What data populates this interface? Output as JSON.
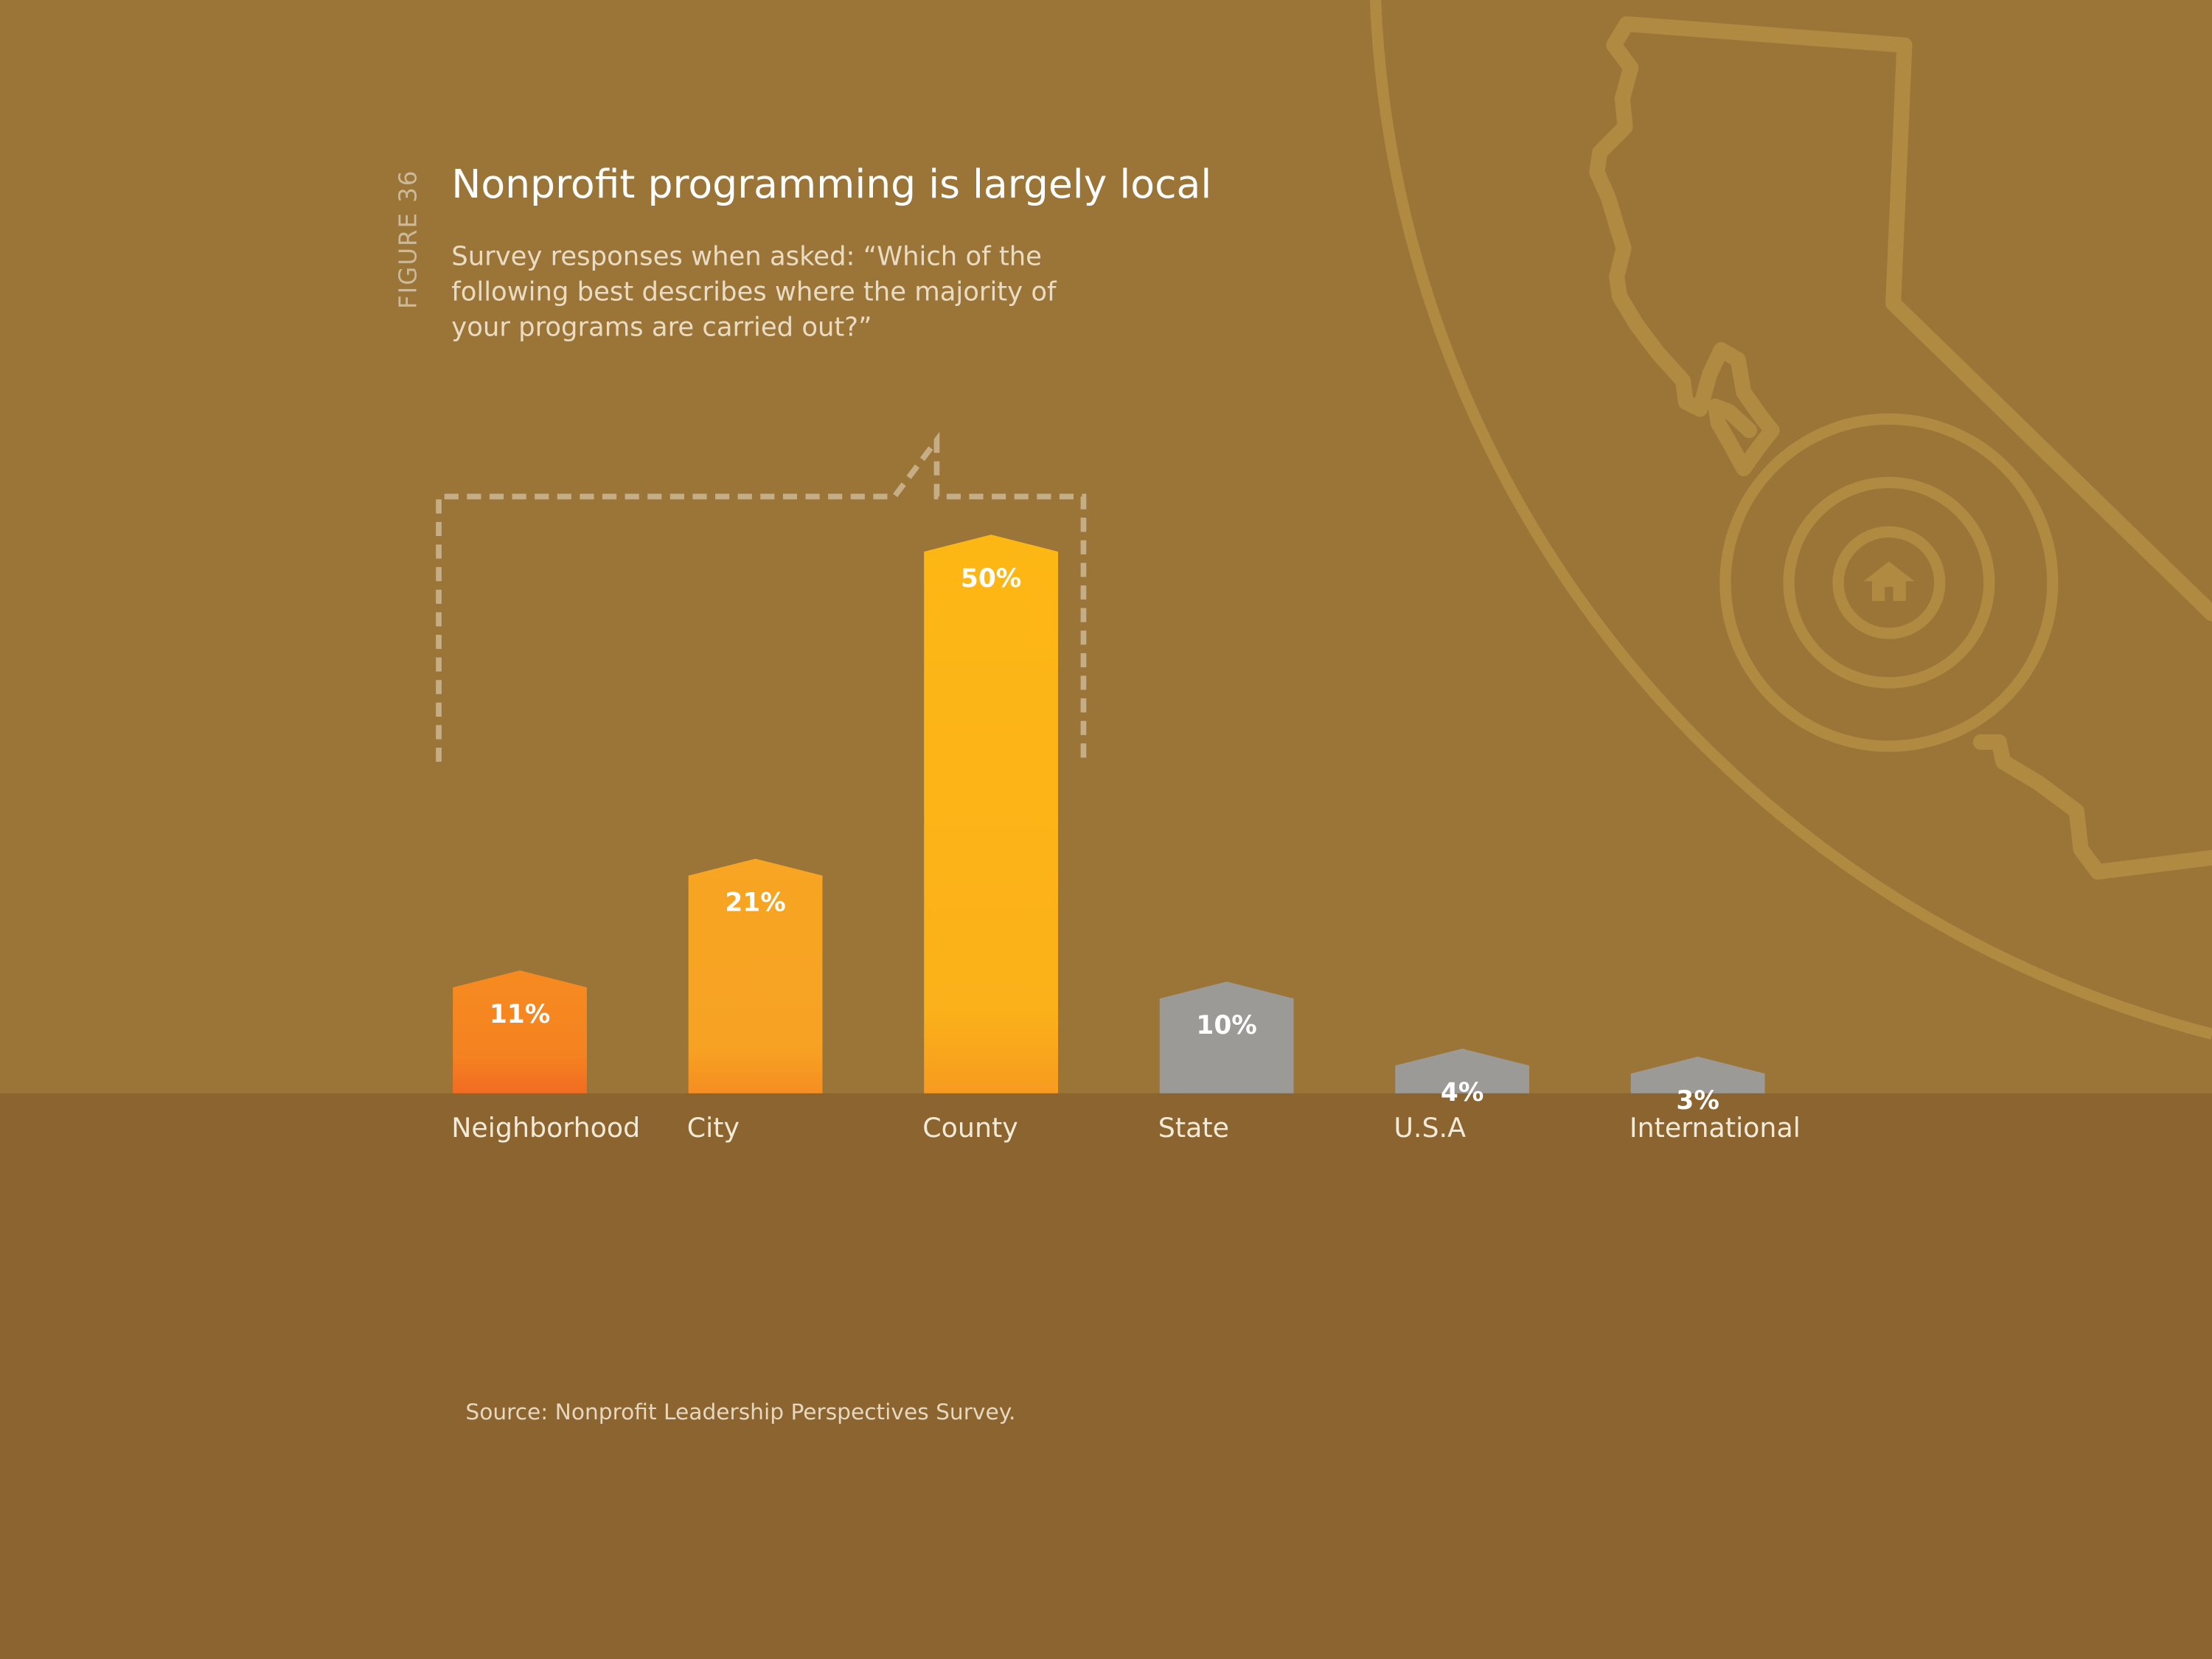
{
  "figure_label": "FIGURE 36",
  "title": "Nonprofit programming is largely local",
  "subtitle": "Survey responses when asked: “Which of the following best describes where the majority of your programs are carried out?”",
  "source": "Source: Nonprofit Leadership Perspectives Survey.",
  "colors": {
    "background_top": "#9b7537",
    "background_bottom": "#8b6430",
    "decoration": "#b08a40",
    "bar_orange_dark": "#f26b22",
    "bar_orange": "#f8a023",
    "bar_yellow": "#fdb714",
    "bar_gray": "#9b9a97",
    "label_text": "#f3ead8",
    "bracket": "#cdb894"
  },
  "icons": {
    "map": "california-outline-icon",
    "target": "target-icon",
    "home": "home-icon"
  },
  "chart_data": {
    "type": "bar",
    "categories": [
      "Neighborhood",
      "City",
      "County",
      "State",
      "U.S.A",
      "International"
    ],
    "values": [
      11,
      21,
      50,
      10,
      4,
      3
    ],
    "value_labels": [
      "11%",
      "21%",
      "50%",
      "10%",
      "4%",
      "3%"
    ],
    "highlight_group": "local",
    "unit": "%",
    "ylim": [
      0,
      50
    ],
    "grid": false,
    "legend": "none"
  }
}
